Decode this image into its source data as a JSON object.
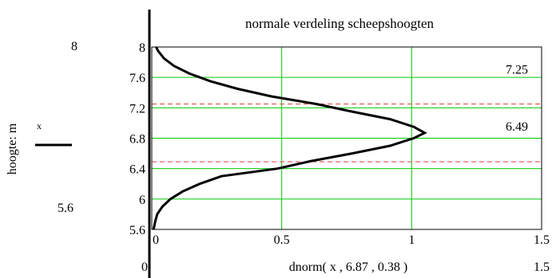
{
  "chart_data": {
    "type": "line",
    "orientation": "horizontal-density",
    "title": "normale verdeling scheepshoogten",
    "xlabel": "dnorm( x , 6.87 , 0.38 )",
    "ylabel": "hoogte: m",
    "legend_label": "x",
    "xlim": [
      0,
      1.5
    ],
    "ylim": [
      5.6,
      8
    ],
    "x_axis_min_label": "0",
    "x_axis_max_label": "1.5",
    "y_axis_min_label": "5.6",
    "y_axis_max_label": "8",
    "xticks": [
      0,
      0.5,
      1,
      1.5
    ],
    "xtick_labels": [
      "0",
      "0.5",
      "1",
      "1.5"
    ],
    "yticks": [
      5.6,
      6,
      6.4,
      6.8,
      7.2,
      7.6,
      8
    ],
    "ytick_labels": [
      "5.6",
      "6",
      "6.4",
      "6.8",
      "7.2",
      "7.6",
      "8"
    ],
    "grid": true,
    "series": [
      {
        "color": "#000000",
        "points": [
          {
            "h": 5.6,
            "d": 0.007
          },
          {
            "h": 5.7,
            "d": 0.013
          },
          {
            "h": 5.8,
            "d": 0.021
          },
          {
            "h": 5.9,
            "d": 0.041
          },
          {
            "h": 6.0,
            "d": 0.072
          },
          {
            "h": 6.1,
            "d": 0.119
          },
          {
            "h": 6.2,
            "d": 0.185
          },
          {
            "h": 6.3,
            "d": 0.268
          },
          {
            "h": 6.4,
            "d": 0.483
          },
          {
            "h": 6.5,
            "d": 0.614
          },
          {
            "h": 6.6,
            "d": 0.771
          },
          {
            "h": 6.7,
            "d": 0.917
          },
          {
            "h": 6.8,
            "d": 1.008
          },
          {
            "h": 6.87,
            "d": 1.05
          },
          {
            "h": 6.95,
            "d": 1.008
          },
          {
            "h": 7.05,
            "d": 0.917
          },
          {
            "h": 7.15,
            "d": 0.771
          },
          {
            "h": 7.25,
            "d": 0.634
          },
          {
            "h": 7.35,
            "d": 0.46
          },
          {
            "h": 7.45,
            "d": 0.33
          },
          {
            "h": 7.55,
            "d": 0.225
          },
          {
            "h": 7.65,
            "d": 0.145
          },
          {
            "h": 7.75,
            "d": 0.086
          },
          {
            "h": 7.85,
            "d": 0.047
          },
          {
            "h": 7.95,
            "d": 0.024
          },
          {
            "h": 8.0,
            "d": 0.017
          }
        ]
      }
    ],
    "reference_lines": [
      {
        "value": 7.25,
        "label": "7.25",
        "color": "#ff0000"
      },
      {
        "value": 6.49,
        "label": "6.49",
        "color": "#ff0000"
      }
    ]
  },
  "colors": {
    "grid": "#00cc00",
    "reference": "#e05050",
    "curve": "#000000"
  }
}
